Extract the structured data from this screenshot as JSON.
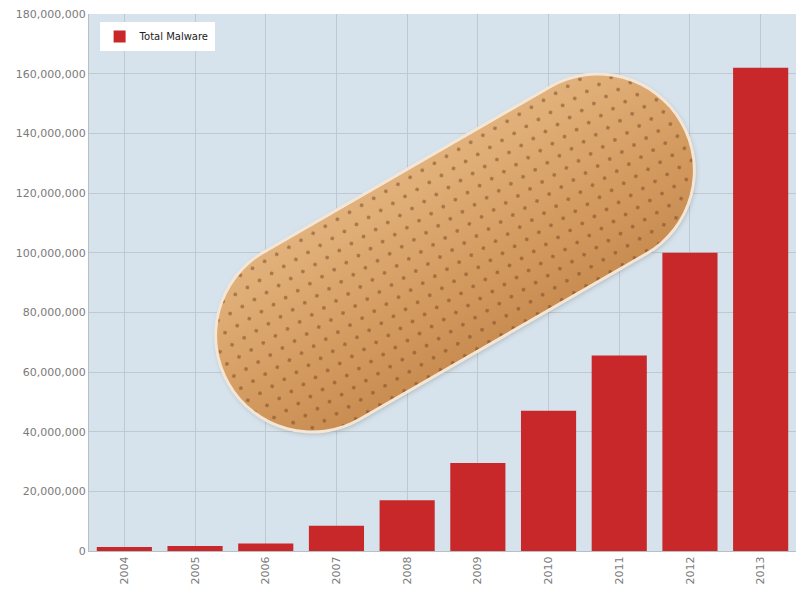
{
  "chart_data": {
    "type": "bar",
    "categories": [
      "2004",
      "2005",
      "2006",
      "2007",
      "2008",
      "2009",
      "2010",
      "2011",
      "2012",
      "2013"
    ],
    "series": [
      {
        "name": "Total Malware",
        "color": "#c8282a",
        "values": [
          1300000,
          1700000,
          2500000,
          8500000,
          17000000,
          29500000,
          47000000,
          65500000,
          100000000,
          162000000
        ]
      }
    ],
    "ylim": [
      0,
      180000000
    ],
    "yticks": [
      0,
      {
        "value": 20000000,
        "label": "20,000,000"
      },
      {
        "value": 40000000,
        "label": "40,000,000"
      },
      {
        "value": 60000000,
        "label": "60,000,000"
      },
      {
        "value": 80000000,
        "label": "80,000,000"
      },
      {
        "value": 100000000,
        "label": "100,000,000"
      },
      {
        "value": 120000000,
        "label": "120,000,000"
      },
      {
        "value": 140000000,
        "label": "140,000,000"
      },
      {
        "value": 160000000,
        "label": "160,000,000"
      },
      {
        "value": 180000000,
        "label": "180,000,000"
      }
    ],
    "grid": true,
    "legend": "top-left"
  }
}
